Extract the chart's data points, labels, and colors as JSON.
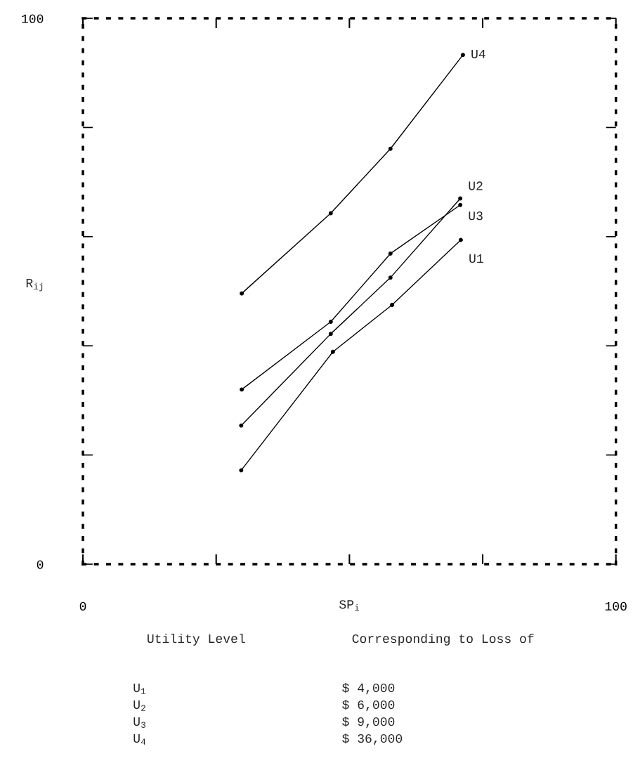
{
  "chart_data": {
    "type": "line",
    "xlabel": "SP$_{i}$",
    "ylabel": "R$_{ij}$",
    "xlim": [
      0,
      100
    ],
    "ylim": [
      0,
      100
    ],
    "xticks": [
      0,
      {
        "value": 25,
        "label": null
      },
      {
        "value": 50,
        "label": null
      },
      {
        "value": 75,
        "label": null
      },
      100
    ],
    "yticks": [
      0,
      {
        "value": 20,
        "label": null
      },
      {
        "value": 40,
        "label": null
      },
      {
        "value": 60,
        "label": null
      },
      {
        "value": 80,
        "label": null
      },
      100
    ],
    "marker": "circle",
    "line_style": "solid",
    "grid": false,
    "legend": false,
    "series": [
      {
        "name": "U4",
        "color": "#000000",
        "x": [
          29.8,
          46.5,
          57.7,
          71.3
        ],
        "values": [
          49.6,
          64.3,
          76.1,
          93.3
        ]
      },
      {
        "name": "U2",
        "color": "#000000",
        "x": [
          29.7,
          46.5,
          57.7,
          70.8
        ],
        "values": [
          25.4,
          42.2,
          52.5,
          67.0
        ]
      },
      {
        "name": "U3",
        "color": "#000000",
        "x": [
          29.8,
          46.5,
          57.7,
          70.8
        ],
        "values": [
          32.0,
          44.4,
          56.9,
          65.8
        ]
      },
      {
        "name": "U1",
        "color": "#000000",
        "x": [
          29.7,
          46.9,
          58.0,
          70.9
        ],
        "values": [
          17.2,
          38.9,
          47.5,
          59.4
        ]
      }
    ],
    "annotations": [
      "Utility Level",
      "Corresponding to Loss of",
      "U$_{1}$",
      "$ 4,000",
      "U$_{2}$",
      "$ 6,000",
      "U$_{3}$",
      "$ 9,000",
      "U$_{4}$",
      "$ 36,000"
    ]
  }
}
